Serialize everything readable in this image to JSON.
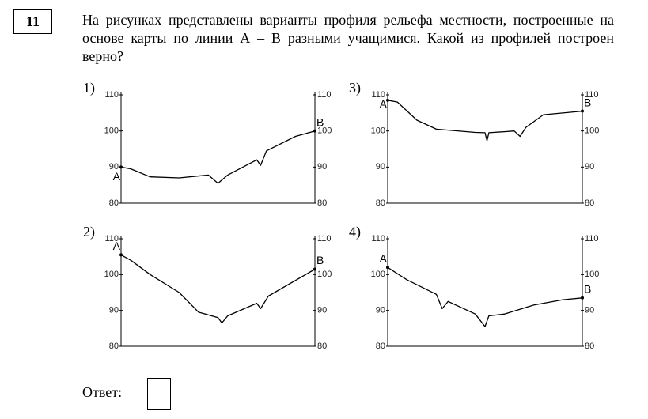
{
  "question": {
    "number": "11",
    "text": "На рисунках представлены варианты профиля рельефа местности, построенные на основе карты по линии А – В разными учащимися. Какой из профилей построен верно?"
  },
  "profiles": [
    {
      "type": "line",
      "label": "1)",
      "start_label": "A",
      "end_label": "B",
      "xlim": [
        0,
        100
      ],
      "ylim": [
        80,
        110
      ],
      "yticks": [
        80,
        90,
        100,
        110
      ],
      "x": [
        0,
        5,
        15,
        30,
        45,
        50,
        55,
        70,
        72,
        75,
        90,
        100
      ],
      "values": [
        90,
        89.5,
        87.3,
        87,
        87.8,
        85.5,
        87.8,
        92,
        90.5,
        94.5,
        98.5,
        100
      ]
    },
    {
      "type": "line",
      "label": "2)",
      "start_label": "A",
      "end_label": "B",
      "xlim": [
        0,
        100
      ],
      "ylim": [
        80,
        110
      ],
      "yticks": [
        80,
        90,
        100,
        110
      ],
      "x": [
        0,
        5,
        15,
        30,
        40,
        50,
        52,
        55,
        70,
        72,
        76,
        100
      ],
      "values": [
        105.5,
        104,
        100,
        95,
        89.5,
        88,
        86.5,
        88.5,
        92,
        90.5,
        94,
        101.5
      ]
    },
    {
      "type": "line",
      "label": "3)",
      "start_label": "A",
      "end_label": "B",
      "xlim": [
        0,
        100
      ],
      "ylim": [
        80,
        110
      ],
      "yticks": [
        80,
        90,
        100,
        110
      ],
      "x": [
        0,
        5,
        15,
        25,
        45,
        50,
        51,
        52,
        60,
        65,
        68,
        71,
        80,
        100
      ],
      "values": [
        108.5,
        108,
        103,
        100.5,
        99.6,
        99.5,
        97.3,
        99.5,
        99.8,
        100,
        98.5,
        101,
        104.5,
        105.5
      ]
    },
    {
      "type": "line",
      "label": "4)",
      "start_label": "A",
      "end_label": "B",
      "xlim": [
        0,
        100
      ],
      "ylim": [
        80,
        110
      ],
      "yticks": [
        80,
        90,
        100,
        110
      ],
      "x": [
        0,
        10,
        25,
        28,
        31,
        45,
        50,
        52,
        60,
        75,
        90,
        100
      ],
      "values": [
        102,
        98.5,
        94.5,
        90.5,
        92.5,
        89,
        85.5,
        88.5,
        89,
        91.5,
        93,
        93.5
      ]
    }
  ],
  "answer_label": "Ответ:"
}
